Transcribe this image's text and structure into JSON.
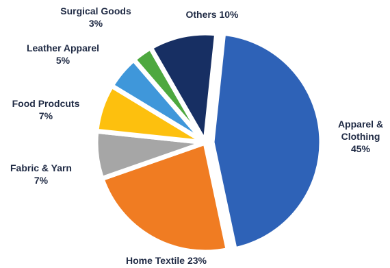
{
  "chart_data": {
    "type": "pie",
    "title": "",
    "slices": [
      {
        "label_lines": [
          "Apparel &",
          "Clothing",
          "45%"
        ],
        "name": "Apparel & Clothing",
        "value": 45,
        "color": "#2E62B7"
      },
      {
        "label_lines": [
          "Home Textile 23%"
        ],
        "name": "Home Textile",
        "value": 23,
        "color": "#F07C22"
      },
      {
        "label_lines": [
          "Fabric & Yarn",
          "7%"
        ],
        "name": "Fabric & Yarn",
        "value": 7,
        "color": "#A6A6A6"
      },
      {
        "label_lines": [
          "Food Prodcuts",
          "7%"
        ],
        "name": "Food Prodcuts",
        "value": 7,
        "color": "#FDC00E"
      },
      {
        "label_lines": [
          "Leather Apparel",
          "5%"
        ],
        "name": "Leather Apparel",
        "value": 5,
        "color": "#3F97DA"
      },
      {
        "label_lines": [
          "Surgical Goods",
          "3%"
        ],
        "name": "Surgical Goods",
        "value": 3,
        "color": "#4DA83F"
      },
      {
        "label_lines": [
          "Others 10%"
        ],
        "name": "Others",
        "value": 10,
        "color": "#172F63"
      }
    ],
    "exploded": true,
    "legend": "none"
  }
}
